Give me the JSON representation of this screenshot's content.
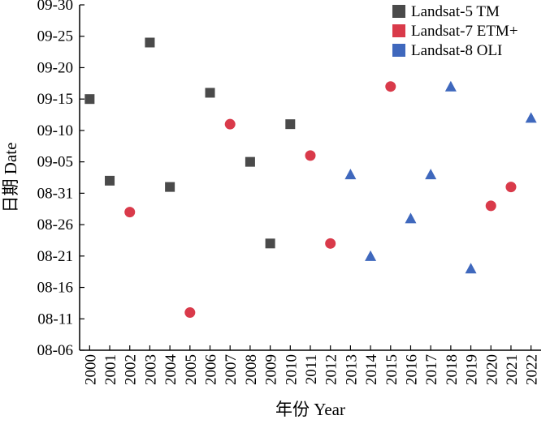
{
  "chart_data": {
    "type": "scatter",
    "xlabel": "年份 Year",
    "ylabel": "日期 Date",
    "x_categories": [
      "2000",
      "2001",
      "2002",
      "2003",
      "2004",
      "2005",
      "2006",
      "2007",
      "2008",
      "2009",
      "2010",
      "2011",
      "2012",
      "2013",
      "2014",
      "2015",
      "2016",
      "2017",
      "2018",
      "2019",
      "2020",
      "2021",
      "2022"
    ],
    "y_tick_labels": [
      "08-06",
      "08-11",
      "08-16",
      "08-21",
      "08-26",
      "08-31",
      "09-05",
      "09-10",
      "09-15",
      "09-20",
      "09-25",
      "09-30"
    ],
    "y_axis_note": "day-of-year scale, ticks every 5 days from 08-06 to 09-30",
    "legend_position": "top-right",
    "grid": false,
    "series": [
      {
        "name": "Landsat-5 TM",
        "marker": "square",
        "color": "#4a4a4a",
        "points": [
          {
            "x": "2000",
            "y": "09-15"
          },
          {
            "x": "2001",
            "y": "09-02"
          },
          {
            "x": "2003",
            "y": "09-24"
          },
          {
            "x": "2004",
            "y": "09-01"
          },
          {
            "x": "2006",
            "y": "09-16"
          },
          {
            "x": "2008",
            "y": "09-05"
          },
          {
            "x": "2009",
            "y": "08-23"
          },
          {
            "x": "2010",
            "y": "09-11"
          }
        ]
      },
      {
        "name": "Landsat-7 ETM+",
        "marker": "circle",
        "color": "#d93a4a",
        "points": [
          {
            "x": "2002",
            "y": "08-28"
          },
          {
            "x": "2005",
            "y": "08-12"
          },
          {
            "x": "2007",
            "y": "09-11"
          },
          {
            "x": "2011",
            "y": "09-06"
          },
          {
            "x": "2012",
            "y": "08-23"
          },
          {
            "x": "2015",
            "y": "09-17"
          },
          {
            "x": "2020",
            "y": "08-29"
          },
          {
            "x": "2021",
            "y": "09-01"
          }
        ]
      },
      {
        "name": "Landsat-8 OLI",
        "marker": "triangle",
        "color": "#3f68bd",
        "points": [
          {
            "x": "2013",
            "y": "09-03"
          },
          {
            "x": "2014",
            "y": "08-21"
          },
          {
            "x": "2016",
            "y": "08-27"
          },
          {
            "x": "2017",
            "y": "09-03"
          },
          {
            "x": "2018",
            "y": "09-17"
          },
          {
            "x": "2019",
            "y": "08-19"
          },
          {
            "x": "2022",
            "y": "09-12"
          }
        ]
      }
    ]
  }
}
